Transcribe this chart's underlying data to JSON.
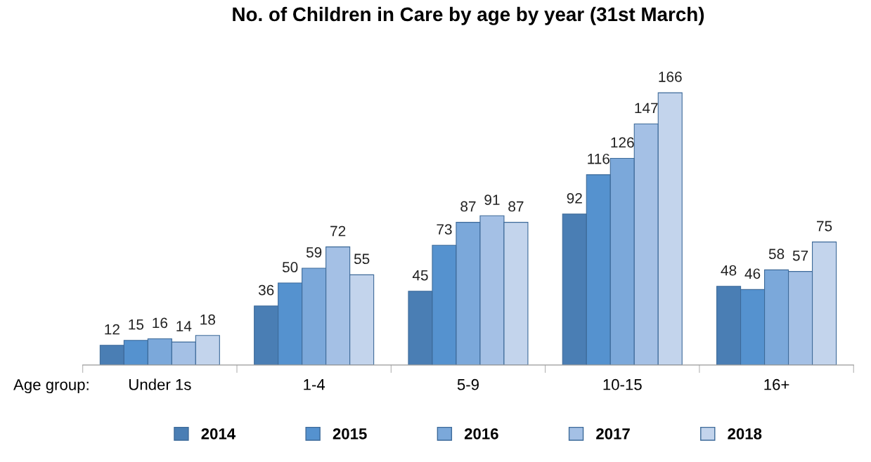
{
  "chart_data": {
    "type": "bar",
    "title": "No. of Children in Care by age by year (31st March)",
    "xlabel": "Age group:",
    "categories": [
      "Under 1s",
      "1-4",
      "5-9",
      "10-15",
      "16+"
    ],
    "series": [
      {
        "name": "2014",
        "color": "#4a7eb4",
        "values": [
          12,
          36,
          45,
          92,
          48
        ]
      },
      {
        "name": "2015",
        "color": "#5592cf",
        "values": [
          15,
          50,
          73,
          116,
          46
        ]
      },
      {
        "name": "2016",
        "color": "#7ba8da",
        "values": [
          16,
          59,
          87,
          126,
          58
        ]
      },
      {
        "name": "2017",
        "color": "#a4c0e5",
        "values": [
          14,
          72,
          91,
          147,
          57
        ]
      },
      {
        "name": "2018",
        "color": "#c3d4ec",
        "values": [
          18,
          55,
          87,
          166,
          75
        ]
      }
    ],
    "data_labels": true,
    "legend": "bottom",
    "grid": false
  }
}
